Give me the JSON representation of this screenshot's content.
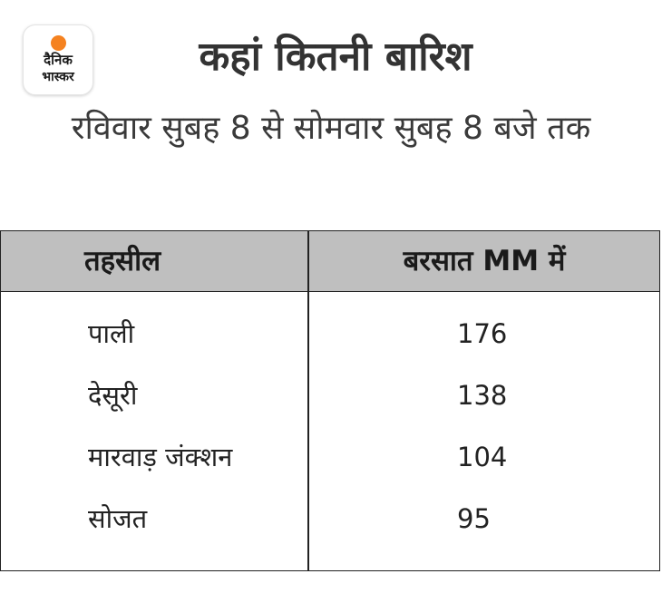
{
  "brand": {
    "line1": "दैनिक",
    "line2": "भास्कर",
    "accent_color": "#f58220"
  },
  "header": {
    "title": "कहां कितनी बारिश",
    "subtitle": "रविवार सुबह 8 से सोमवार सुबह 8 बजे तक"
  },
  "table": {
    "headers": [
      "तहसील",
      "बरसात MM में"
    ],
    "rows": [
      {
        "tehsil": "पाली",
        "rain_mm": "176"
      },
      {
        "tehsil": "देसूरी",
        "rain_mm": "138"
      },
      {
        "tehsil": "मारवाड़ जंक्शन",
        "rain_mm": "104"
      },
      {
        "tehsil": "सोजत",
        "rain_mm": "95"
      }
    ],
    "header_bg": "#bfbfbf"
  }
}
